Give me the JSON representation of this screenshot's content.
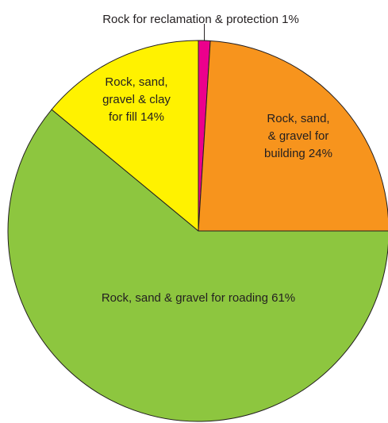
{
  "chart_data": {
    "type": "pie",
    "title": "",
    "slices": [
      {
        "label": "Rock for reclamation & protection",
        "value": 1,
        "display": [
          "Rock for reclamation & protection 1%"
        ],
        "color": "#ec008c"
      },
      {
        "label": "Rock, sand, & gravel for building",
        "value": 24,
        "display": [
          "Rock, sand,",
          "& gravel for",
          "building 24%"
        ],
        "color": "#f7941d"
      },
      {
        "label": "Rock, sand & gravel for roading",
        "value": 61,
        "display": [
          "Rock, sand & gravel for roading 61%"
        ],
        "color": "#8dc63f"
      },
      {
        "label": "Rock, sand, gravel & clay for fill",
        "value": 14,
        "display": [
          "Rock, sand,",
          "gravel & clay",
          "for fill 14%"
        ],
        "color": "#fff200"
      }
    ]
  }
}
